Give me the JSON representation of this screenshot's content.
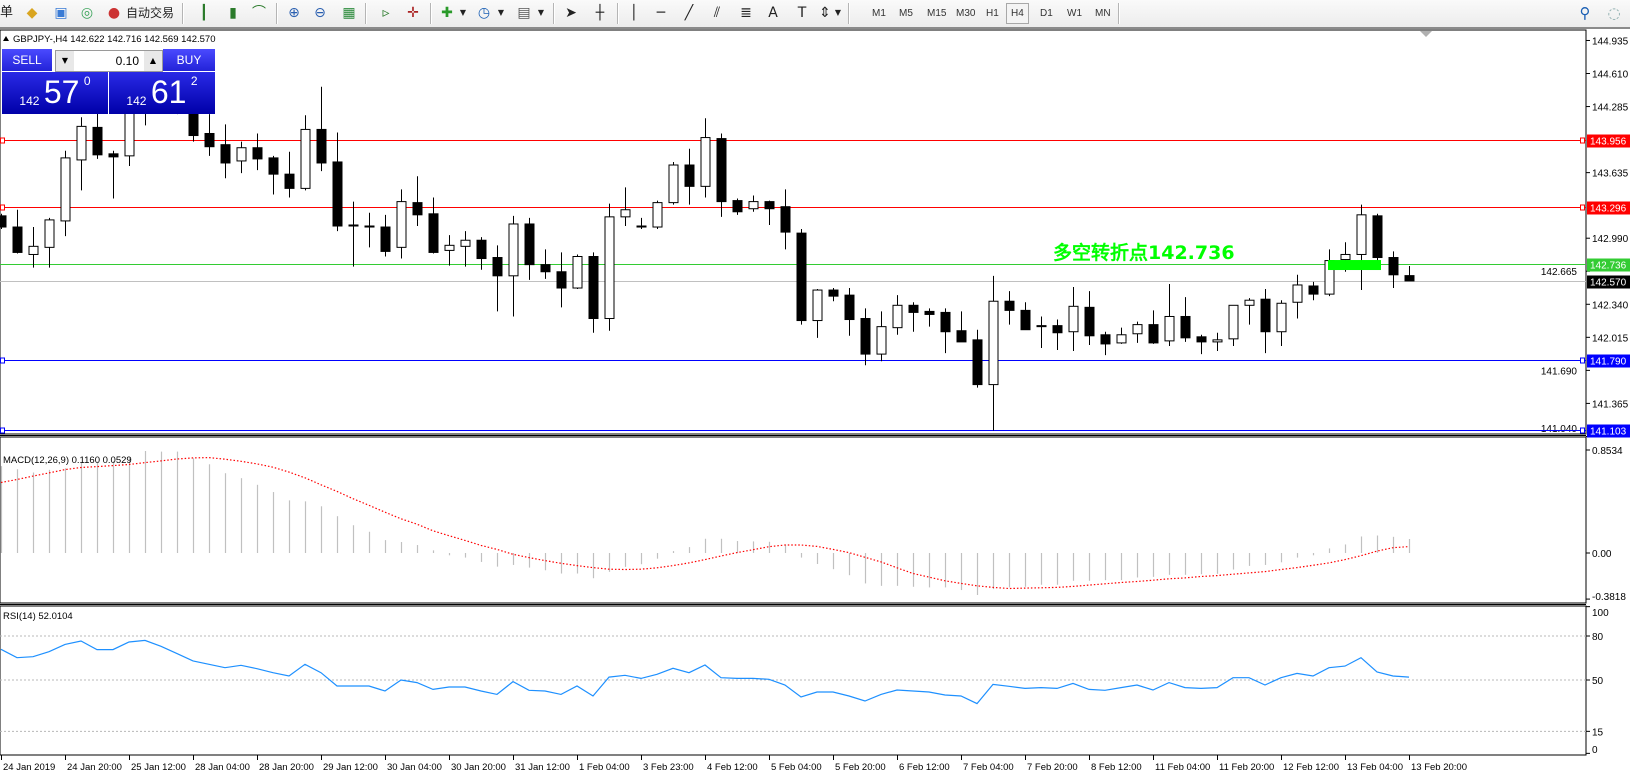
{
  "toolbar": {
    "partial_label": "单",
    "auto_trading_label": "自动交易",
    "timeframes": [
      "M1",
      "M5",
      "M15",
      "M30",
      "H1",
      "H4",
      "D1",
      "W1",
      "MN"
    ],
    "active_timeframe": "H4"
  },
  "chart_header": {
    "symbol_line": "GBPJPY-,H4  142.622 142.716 142.569 142.570"
  },
  "trade_panel": {
    "sell_label": "SELL",
    "buy_label": "BUY",
    "lot": "0.10",
    "sell_prefix": "142",
    "sell_big": "57",
    "sell_sup": "0",
    "buy_prefix": "142",
    "buy_big": "61",
    "buy_sup": "2"
  },
  "annotation": {
    "text": "多空转折点142.736",
    "color": "#00ff00",
    "price": 142.736
  },
  "price_axis": {
    "ticks": [
      "144.935",
      "144.610",
      "144.285",
      "143.635",
      "142.990",
      "142.665",
      "142.340",
      "142.015",
      "141.690",
      "141.365",
      "141.040"
    ],
    "levels": [
      {
        "label": "143.956",
        "price": 143.956,
        "color": "#ff0000"
      },
      {
        "label": "143.296",
        "price": 143.296,
        "color": "#ff0000"
      },
      {
        "label": "142.736",
        "price": 142.736,
        "color": "#33cc33"
      },
      {
        "label": "142.570",
        "price": 142.57,
        "color": "#000000",
        "line": "#c0c0c0"
      },
      {
        "label": "141.790",
        "price": 141.79,
        "color": "#0000ff"
      },
      {
        "label": "141.103",
        "price": 141.103,
        "color": "#0000ff"
      }
    ]
  },
  "macd": {
    "label": "MACD(12,26,9) 0.1160 0.0529",
    "axis": [
      "0.8534",
      "0.00",
      "-0.3818"
    ],
    "main": [
      0.72,
      0.694,
      0.667,
      0.689,
      0.702,
      0.752,
      0.757,
      0.763,
      0.793,
      0.845,
      0.84,
      0.84,
      0.785,
      0.735,
      0.661,
      0.62,
      0.565,
      0.505,
      0.436,
      0.428,
      0.387,
      0.305,
      0.23,
      0.176,
      0.107,
      0.091,
      0.066,
      0.022,
      -0.019,
      -0.038,
      -0.074,
      -0.113,
      -0.099,
      -0.121,
      -0.143,
      -0.17,
      -0.17,
      -0.209,
      -0.156,
      -0.115,
      -0.093,
      -0.047,
      0.016,
      0.049,
      0.118,
      0.118,
      0.099,
      0.096,
      0.093,
      0.071,
      -0.038,
      -0.091,
      -0.134,
      -0.184,
      -0.252,
      -0.272,
      -0.272,
      -0.28,
      -0.285,
      -0.285,
      -0.307,
      -0.348,
      -0.299,
      -0.285,
      -0.28,
      -0.263,
      -0.263,
      -0.23,
      -0.23,
      -0.225,
      -0.225,
      -0.203,
      -0.198,
      -0.181,
      -0.181,
      -0.176,
      -0.173,
      -0.137,
      -0.107,
      -0.099,
      -0.077,
      -0.038,
      -0.019,
      0.038,
      0.071,
      0.137,
      0.145,
      0.134,
      0.116
    ],
    "signal": [
      0.584,
      0.609,
      0.637,
      0.664,
      0.691,
      0.708,
      0.716,
      0.724,
      0.733,
      0.749,
      0.763,
      0.779,
      0.788,
      0.79,
      0.777,
      0.76,
      0.738,
      0.711,
      0.67,
      0.623,
      0.565,
      0.51,
      0.45,
      0.395,
      0.338,
      0.283,
      0.239,
      0.184,
      0.143,
      0.104,
      0.063,
      0.03,
      -0.011,
      -0.038,
      -0.063,
      -0.085,
      -0.104,
      -0.121,
      -0.134,
      -0.137,
      -0.134,
      -0.123,
      -0.104,
      -0.082,
      -0.055,
      -0.025,
      0.003,
      0.027,
      0.052,
      0.066,
      0.066,
      0.055,
      0.03,
      0.003,
      -0.036,
      -0.074,
      -0.123,
      -0.17,
      -0.2,
      -0.23,
      -0.252,
      -0.272,
      -0.285,
      -0.294,
      -0.291,
      -0.288,
      -0.285,
      -0.277,
      -0.266,
      -0.255,
      -0.244,
      -0.236,
      -0.225,
      -0.214,
      -0.206,
      -0.195,
      -0.187,
      -0.176,
      -0.165,
      -0.154,
      -0.137,
      -0.121,
      -0.102,
      -0.082,
      -0.055,
      -0.022,
      0.016,
      0.044,
      0.0529
    ],
    "hist_color": "#c0c0c0",
    "signal_color": "#ff0000"
  },
  "rsi": {
    "label": "RSI(14) 52.0104",
    "axis": [
      "100",
      "80",
      "50",
      "15",
      "0"
    ],
    "values": [
      70.9,
      65.2,
      65.9,
      69.3,
      74.3,
      76.6,
      70.7,
      70.7,
      75.9,
      77.0,
      73.0,
      68.0,
      63.0,
      60.7,
      58.4,
      60.0,
      57.7,
      55.0,
      52.7,
      60.7,
      55.0,
      45.9,
      45.9,
      45.9,
      42.5,
      50.0,
      48.2,
      43.6,
      45.2,
      45.2,
      42.5,
      40.2,
      48.9,
      43.0,
      42.5,
      40.2,
      45.9,
      39.1,
      52.0,
      53.2,
      51.1,
      53.9,
      58.0,
      55.0,
      60.2,
      51.6,
      51.1,
      51.1,
      50.5,
      46.6,
      38.4,
      41.8,
      41.8,
      39.1,
      35.7,
      40.2,
      43.2,
      42.5,
      41.8,
      39.8,
      39.1,
      33.9,
      47.0,
      45.7,
      44.3,
      44.8,
      44.3,
      47.7,
      43.6,
      43.0,
      44.8,
      46.6,
      43.2,
      48.2,
      44.8,
      44.3,
      44.8,
      51.6,
      51.6,
      46.6,
      51.6,
      54.5,
      52.7,
      58.4,
      59.5,
      65.2,
      55.5,
      52.7,
      52.0104
    ],
    "color": "#1e90ff"
  },
  "time_axis": [
    "24 Jan 2019",
    "24 Jan 20:00",
    "25 Jan 12:00",
    "28 Jan 04:00",
    "28 Jan 20:00",
    "29 Jan 12:00",
    "30 Jan 04:00",
    "30 Jan 20:00",
    "31 Jan 12:00",
    "1 Feb 04:00",
    "3 Feb 23:00",
    "4 Feb 12:00",
    "5 Feb 04:00",
    "5 Feb 20:00",
    "6 Feb 12:00",
    "7 Feb 04:00",
    "7 Feb 20:00",
    "8 Feb 12:00",
    "11 Feb 04:00",
    "11 Feb 20:00",
    "12 Feb 12:00",
    "13 Feb 04:00",
    "13 Feb 20:00"
  ],
  "chart_data": {
    "type": "candlestick",
    "symbol": "GBPJPY-",
    "timeframe": "H4",
    "ylim": [
      141.04,
      144.935
    ],
    "ohlc_order": [
      "open",
      "high",
      "low",
      "close"
    ],
    "candles": [
      [
        143.21,
        143.23,
        143.08,
        143.1
      ],
      [
        143.1,
        143.27,
        142.84,
        142.85
      ],
      [
        142.83,
        143.1,
        142.7,
        142.91
      ],
      [
        142.9,
        143.19,
        142.7,
        143.17
      ],
      [
        143.16,
        143.85,
        143.01,
        143.78
      ],
      [
        143.76,
        144.18,
        143.46,
        144.09
      ],
      [
        144.08,
        144.28,
        143.77,
        143.81
      ],
      [
        143.82,
        143.85,
        143.38,
        143.79
      ],
      [
        143.8,
        144.47,
        143.7,
        144.26
      ],
      [
        144.3,
        144.55,
        144.1,
        144.4
      ],
      [
        144.35,
        144.6,
        144.25,
        144.45
      ],
      [
        144.45,
        144.55,
        144.21,
        144.35
      ],
      [
        144.26,
        144.4,
        143.94,
        144.0
      ],
      [
        144.02,
        144.21,
        143.8,
        143.89
      ],
      [
        143.91,
        144.11,
        143.58,
        143.73
      ],
      [
        143.75,
        143.94,
        143.63,
        143.88
      ],
      [
        143.88,
        144.02,
        143.66,
        143.77
      ],
      [
        143.78,
        143.8,
        143.42,
        143.62
      ],
      [
        143.62,
        143.84,
        143.39,
        143.48
      ],
      [
        143.48,
        144.2,
        143.46,
        144.06
      ],
      [
        144.06,
        144.48,
        143.65,
        143.73
      ],
      [
        143.74,
        144.03,
        143.06,
        143.11
      ],
      [
        143.12,
        143.35,
        142.71,
        143.11
      ],
      [
        143.11,
        143.24,
        142.9,
        143.1
      ],
      [
        143.1,
        143.22,
        142.81,
        142.86
      ],
      [
        142.9,
        143.47,
        142.79,
        143.35
      ],
      [
        143.34,
        143.6,
        143.11,
        143.22
      ],
      [
        143.23,
        143.39,
        142.84,
        142.85
      ],
      [
        142.87,
        143.02,
        142.72,
        142.92
      ],
      [
        142.91,
        143.06,
        142.71,
        142.97
      ],
      [
        142.97,
        143.0,
        142.68,
        142.79
      ],
      [
        142.8,
        142.92,
        142.27,
        142.62
      ],
      [
        142.62,
        143.21,
        142.22,
        143.13
      ],
      [
        143.13,
        143.19,
        142.58,
        142.73
      ],
      [
        142.73,
        142.88,
        142.59,
        142.66
      ],
      [
        142.66,
        142.85,
        142.31,
        142.5
      ],
      [
        142.5,
        142.83,
        142.49,
        142.81
      ],
      [
        142.81,
        142.85,
        142.06,
        142.2
      ],
      [
        142.2,
        143.33,
        142.08,
        143.2
      ],
      [
        143.2,
        143.49,
        143.11,
        143.27
      ],
      [
        143.11,
        143.19,
        143.08,
        143.1
      ],
      [
        143.1,
        143.36,
        143.08,
        143.34
      ],
      [
        143.34,
        143.74,
        143.32,
        143.71
      ],
      [
        143.71,
        143.87,
        143.32,
        143.5
      ],
      [
        143.5,
        144.17,
        143.39,
        143.98
      ],
      [
        143.97,
        144.02,
        143.2,
        143.35
      ],
      [
        143.36,
        143.38,
        143.22,
        143.25
      ],
      [
        143.28,
        143.41,
        143.25,
        143.35
      ],
      [
        143.35,
        143.36,
        143.12,
        143.28
      ],
      [
        143.3,
        143.47,
        142.88,
        143.05
      ],
      [
        143.04,
        143.08,
        142.14,
        142.18
      ],
      [
        142.18,
        142.49,
        142.01,
        142.48
      ],
      [
        142.48,
        142.5,
        142.37,
        142.42
      ],
      [
        142.43,
        142.5,
        142.03,
        142.19
      ],
      [
        142.2,
        142.3,
        141.74,
        141.85
      ],
      [
        141.85,
        142.27,
        141.78,
        142.12
      ],
      [
        142.11,
        142.43,
        142.04,
        142.33
      ],
      [
        142.33,
        142.36,
        142.07,
        142.26
      ],
      [
        142.27,
        142.3,
        142.12,
        142.24
      ],
      [
        142.26,
        142.3,
        141.86,
        142.07
      ],
      [
        142.08,
        142.27,
        141.97,
        141.97
      ],
      [
        141.99,
        142.09,
        141.52,
        141.55
      ],
      [
        141.55,
        142.62,
        141.1,
        142.37
      ],
      [
        142.37,
        142.47,
        142.14,
        142.28
      ],
      [
        142.28,
        142.36,
        142.09,
        142.09
      ],
      [
        142.12,
        142.22,
        141.91,
        142.13
      ],
      [
        142.13,
        142.19,
        141.89,
        142.06
      ],
      [
        142.07,
        142.51,
        141.88,
        142.32
      ],
      [
        142.31,
        142.47,
        141.94,
        142.03
      ],
      [
        142.04,
        142.07,
        141.84,
        141.95
      ],
      [
        141.96,
        142.11,
        141.95,
        142.04
      ],
      [
        142.05,
        142.17,
        141.96,
        142.14
      ],
      [
        142.14,
        142.28,
        141.95,
        141.96
      ],
      [
        141.98,
        142.54,
        141.93,
        142.22
      ],
      [
        142.22,
        142.41,
        141.97,
        142.01
      ],
      [
        142.02,
        142.04,
        141.85,
        141.97
      ],
      [
        141.97,
        142.06,
        141.88,
        141.99
      ],
      [
        142.0,
        142.33,
        141.93,
        142.33
      ],
      [
        142.33,
        142.4,
        142.14,
        142.38
      ],
      [
        142.39,
        142.49,
        141.86,
        142.07
      ],
      [
        142.07,
        142.38,
        141.93,
        142.35
      ],
      [
        142.36,
        142.63,
        142.2,
        142.53
      ],
      [
        142.52,
        142.56,
        142.38,
        142.44
      ],
      [
        142.44,
        142.88,
        142.42,
        142.77
      ],
      [
        142.78,
        142.95,
        142.66,
        142.83
      ],
      [
        142.83,
        143.32,
        142.48,
        143.22
      ],
      [
        143.21,
        143.23,
        142.74,
        142.8
      ],
      [
        142.8,
        142.86,
        142.5,
        142.63
      ],
      [
        142.622,
        142.716,
        142.569,
        142.57
      ]
    ],
    "grid": false
  }
}
